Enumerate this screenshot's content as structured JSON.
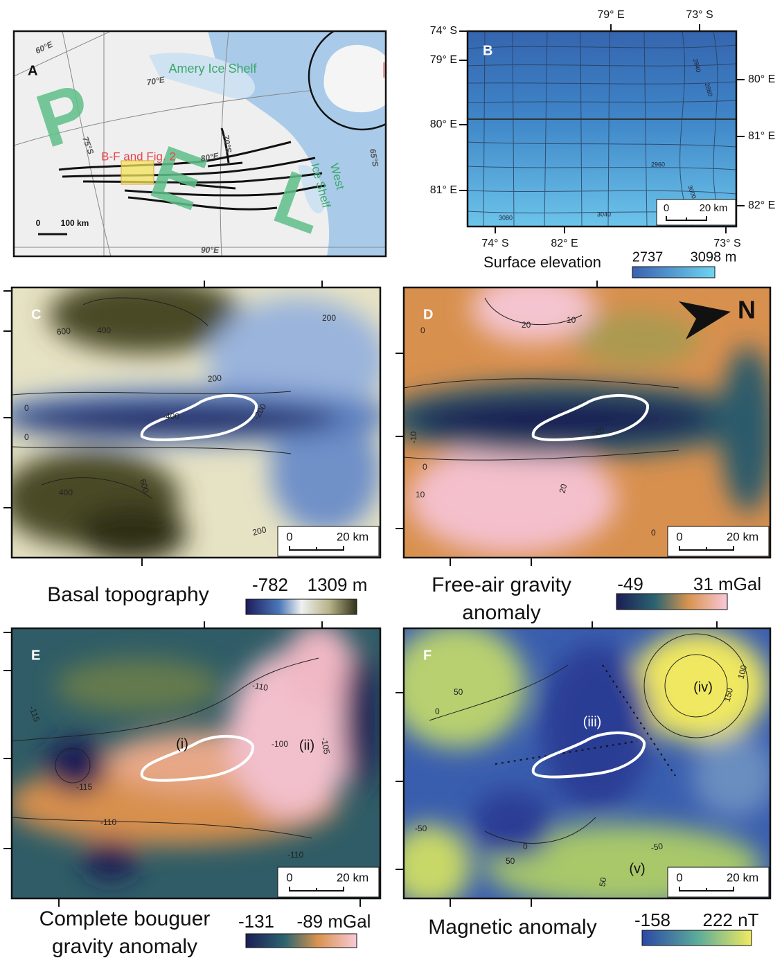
{
  "panel_a": {
    "label": "A",
    "graticule": [
      "60°E",
      "70°E",
      "75°S",
      "70°S",
      "80°E",
      "65°S",
      "90°E"
    ],
    "places": [
      "Amery Ice Shelf",
      "West",
      "Ice Shelf"
    ],
    "study_area": "B-F and Fig. 2",
    "letters": [
      "P",
      "E",
      "L"
    ],
    "scale": [
      "0",
      "100 km"
    ]
  },
  "panel_b": {
    "label": "B",
    "left_ticks": [
      "74° S",
      "79° E",
      "80° E",
      "81° E"
    ],
    "top_ticks": [
      "79° E",
      "73° S"
    ],
    "right_ticks": [
      "80° E",
      "81° E",
      "82° E"
    ],
    "bottom_ticks": [
      "74° S",
      "82° E",
      "73° S"
    ],
    "contours": [
      "2840",
      "2880",
      "2960",
      "3000",
      "3040",
      "3080"
    ],
    "scale": [
      "0",
      "20 km"
    ],
    "colorbar": {
      "title": "Surface elevation",
      "min": "2737",
      "max": "3098 m"
    }
  },
  "panel_c": {
    "label": "C",
    "contours": [
      "600",
      "400",
      "200",
      "200",
      "0",
      "-400",
      "-200",
      "0",
      "400",
      "600",
      "200"
    ],
    "scale": [
      "0",
      "20 km"
    ],
    "colorbar": {
      "title": [
        "Basal topography"
      ],
      "min": "-782",
      "max": "1309 m"
    }
  },
  "panel_d": {
    "label": "D",
    "north": "N",
    "contours": [
      "20",
      "10",
      "0",
      "-20",
      "-10",
      "0",
      "10",
      "20",
      "0"
    ],
    "scale": [
      "0",
      "20 km"
    ],
    "colorbar": {
      "title": [
        "Free-air gravity",
        "anomaly"
      ],
      "min": "-49",
      "max": "31 mGal"
    }
  },
  "panel_e": {
    "label": "E",
    "annotations": [
      "(i)",
      "(ii)"
    ],
    "contours": [
      "-115",
      "-110",
      "-100",
      "-105",
      "-115",
      "-110",
      "-110"
    ],
    "scale": [
      "0",
      "20 km"
    ],
    "colorbar": {
      "title": [
        "Complete bouguer",
        "gravity anomaly"
      ],
      "min": "-131",
      "max": "-89 mGal"
    }
  },
  "panel_f": {
    "label": "F",
    "annotations": [
      "(iii)",
      "(iv)",
      "(v)"
    ],
    "contours": [
      "50",
      "0",
      "-50",
      "100",
      "150",
      "50",
      "0",
      "-50",
      "50"
    ],
    "scale": [
      "0",
      "20 km"
    ],
    "colorbar": {
      "title": [
        "Magnetic anomaly"
      ],
      "min": "-158",
      "max": "222 nT"
    }
  }
}
